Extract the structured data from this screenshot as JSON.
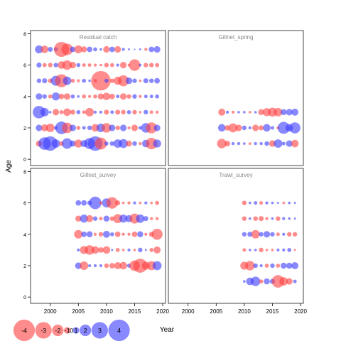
{
  "chart_data": {
    "type": "scatter",
    "subtype": "bubble-residuals",
    "ylabel": "Age",
    "xlabel": "Year",
    "xlim": [
      1996.5,
      2020.5
    ],
    "ylim": [
      -0.4,
      8.2
    ],
    "xticks": [
      2000,
      2005,
      2010,
      2015,
      2020
    ],
    "yticks": [
      0,
      2,
      4,
      6,
      8
    ],
    "colors": {
      "positive": "#3a3aff",
      "negative": "#ff4040",
      "frame": "#444444",
      "panel_title": "#888888"
    },
    "grid": false,
    "legend": {
      "placement": "bottom-left",
      "values": [
        -4,
        -3,
        -2,
        -1,
        0,
        1,
        2,
        3,
        4
      ],
      "labels": [
        "-4",
        "-3",
        "-2",
        "-1",
        "0",
        "1",
        "2",
        "3",
        "4"
      ]
    },
    "panels": [
      {
        "title": "Residual catch",
        "years": [
          1998,
          2019
        ],
        "ages": [
          1,
          7
        ],
        "residuals": {
          "1": [
            -0.9,
            2.2,
            2.6,
            1.4,
            -0.6,
            1.8,
            0.9,
            -1.3,
            1.1,
            1.9,
            2.6,
            -2.1,
            0.5,
            0.6,
            1.4,
            1.5,
            -0.9,
            0.6,
            -0.3,
            1.2,
            -2.0,
            1.3
          ],
          "2": [
            1.0,
            -1.1,
            -1.4,
            0.4,
            2.2,
            -1.8,
            1.0,
            -0.5,
            0.4,
            0.6,
            -1.2,
            1.4,
            -1.6,
            1.0,
            -0.6,
            1.0,
            -0.3,
            -1.0,
            0.4,
            1.6,
            -1.9,
            1.0
          ],
          "3": [
            2.2,
            1.4,
            0.2,
            -1.0,
            -0.5,
            -1.2,
            -0.7,
            0.5,
            -0.4,
            -1.4,
            0.3,
            0.3,
            -0.7,
            0.4,
            -0.7,
            -0.6,
            0.5,
            -0.6,
            -0.2,
            0.6,
            -0.4,
            -0.3
          ],
          "4": [
            1.0,
            0.6,
            -0.5,
            1.3,
            -0.8,
            -1.0,
            0.5,
            0.2,
            -0.5,
            -0.3,
            -0.5,
            -0.9,
            -1.2,
            -0.8,
            0.4,
            -1.0,
            -0.6,
            0.6,
            -0.3,
            0.4,
            0.4,
            0.5
          ],
          "5": [
            0.6,
            0.7,
            -0.6,
            1.7,
            -2.3,
            1.4,
            -0.5,
            -0.3,
            0.5,
            0.2,
            -0.4,
            -3.6,
            0.5,
            -0.6,
            -1.3,
            -1.9,
            1.0,
            0.6,
            -0.2,
            0.7,
            0.6,
            0.8
          ],
          "6": [
            0.7,
            -0.5,
            -0.6,
            0.6,
            -1.2,
            -1.6,
            -1.0,
            0.5,
            -0.4,
            -0.4,
            -0.3,
            -0.2,
            -0.6,
            -0.5,
            0.3,
            -1.0,
            -0.2,
            -2.0,
            0.2,
            -0.6,
            -0.6,
            -0.5
          ],
          "7": [
            1.3,
            -1.2,
            0.7,
            0.5,
            -2.7,
            -2.0,
            0.8,
            -1.3,
            -0.9,
            0.8,
            0.5,
            0.2,
            -1.0,
            0.8,
            -1.0,
            0.3,
            0.1,
            0.0,
            0.1,
            -0.3,
            0.8,
            1.0
          ]
        }
      },
      {
        "title": "Gillnet_spring",
        "years": [
          2006,
          2019
        ],
        "ages": [
          1,
          3
        ],
        "residuals": {
          "1": [
            -1.6,
            -0.8,
            0.3,
            0.3,
            0.2,
            -0.2,
            0.3,
            0.3,
            0.6,
            -1.0,
            1.4,
            0.4,
            1.0,
            -1.2
          ],
          "2": [
            1.2,
            -0.8,
            -1.5,
            -1.0,
            0.6,
            0.3,
            -1.0,
            -0.7,
            1.2,
            0.4,
            -0.3,
            2.1,
            1.2,
            1.9
          ],
          "3": [
            -1.1,
            0.3,
            -0.3,
            0.2,
            0.2,
            -0.2,
            0.2,
            -0.9,
            -1.3,
            -1.5,
            -1.4,
            0.9,
            1.0,
            1.1
          ]
        }
      },
      {
        "title": "Gillnet_survey",
        "years": [
          2005,
          2019
        ],
        "ages": [
          2,
          6
        ],
        "residuals": {
          "2": [
            1.0,
            -1.4,
            0.3,
            0.3,
            0.3,
            -0.6,
            -0.8,
            -1.1,
            -1.2,
            0.5,
            -1.8,
            -2.5,
            -1.3,
            -1.5,
            1.5
          ],
          "3": [
            0.3,
            -1.3,
            -1.6,
            -1.2,
            -0.8,
            -1.2,
            0.1,
            -0.5,
            -0.2,
            0.3,
            -0.2,
            0.6,
            0.1,
            -0.5,
            -1.1
          ],
          "4": [
            -1.4,
            0.8,
            0.9,
            -0.3,
            -0.6,
            1.1,
            0.5,
            -0.8,
            -0.3,
            -0.3,
            -0.8,
            0.9,
            -0.3,
            -0.7,
            -1.9
          ],
          "5": [
            -0.9,
            1.3,
            -1.1,
            0.6,
            -0.4,
            0.9,
            -0.6,
            -1.5,
            1.3,
            1.1,
            -1.7,
            1.4,
            0.7,
            -0.3,
            -0.3
          ],
          "6": [
            0.8,
            0.8,
            0.6,
            2.2,
            -0.3,
            1.5,
            -2.0,
            -0.7,
            -0.2,
            -0.3,
            0.3,
            -0.2,
            0.3,
            -0.2,
            -0.5
          ]
        }
      },
      {
        "title": "Trawl_survey",
        "years": [
          2010,
          2019
        ],
        "ages": [
          1,
          6
        ],
        "residuals": {
          "1": [
            0.2,
            1.2,
            1.6,
            -0.5,
            0.9,
            0.7,
            -2.2,
            -1.4,
            -1.0,
            0.4
          ],
          "2": [
            -1.3,
            -1.6,
            0.6,
            0.3,
            -0.5,
            0.6,
            -0.5,
            0.9,
            0.9,
            1.1
          ],
          "3": [
            -0.4,
            0.2,
            0.2,
            -0.6,
            -0.2,
            -0.2,
            0.3,
            0.3,
            0.5,
            -0.1
          ],
          "4": [
            0.6,
            0.7,
            -1.4,
            0.6,
            1.0,
            0.6,
            -0.4,
            0.3,
            -0.6,
            -0.6
          ],
          "5": [
            -0.6,
            0.2,
            -0.6,
            -0.7,
            -0.3,
            0.2,
            -0.6,
            0.3,
            0.2,
            0.1
          ],
          "6": [
            -0.6,
            0.2,
            0.4,
            -0.4,
            0.3,
            0.2,
            0.1,
            -0.2,
            0.2,
            0.1
          ]
        }
      }
    ]
  }
}
